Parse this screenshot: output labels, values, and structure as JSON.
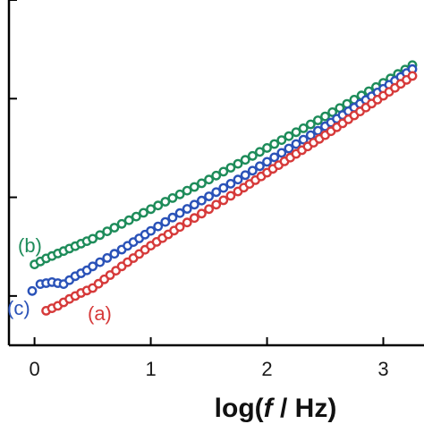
{
  "chart_data": {
    "type": "scatter",
    "xlabel_prefix": "log(",
    "xlabel_italic": "f",
    "xlabel_suffix": " / Hz)",
    "ylabel": "",
    "xlim": [
      -0.22,
      3.35
    ],
    "ylim": [
      0.0,
      3.5
    ],
    "x_ticks": [
      0,
      1,
      2,
      3
    ],
    "x_tick_labels": [
      "0",
      "1",
      "2",
      "3"
    ],
    "y_ticks": [
      0.5,
      1.5,
      2.5,
      3.5
    ],
    "grid": false,
    "legend": "none",
    "series": [
      {
        "name": "(b)",
        "color": "#1e8c5a",
        "x": [
          0.0,
          0.1,
          0.2,
          0.3,
          0.4,
          0.5,
          0.75,
          1.0,
          1.25,
          1.5,
          1.75,
          2.0,
          2.25,
          2.5,
          2.75,
          3.0,
          3.25
        ],
        "y": [
          0.82,
          0.88,
          0.93,
          0.98,
          1.03,
          1.08,
          1.23,
          1.38,
          1.53,
          1.68,
          1.84,
          2.0,
          2.16,
          2.32,
          2.49,
          2.66,
          2.84
        ]
      },
      {
        "name": "(c)",
        "color": "#2a52b8",
        "x": [
          -0.02,
          0.05,
          0.15,
          0.25,
          0.35,
          0.45,
          0.5,
          0.75,
          1.0,
          1.25,
          1.5,
          1.75,
          2.0,
          2.25,
          2.5,
          2.75,
          3.0,
          3.25
        ],
        "y": [
          0.55,
          0.62,
          0.64,
          0.62,
          0.7,
          0.76,
          0.8,
          0.97,
          1.16,
          1.34,
          1.51,
          1.68,
          1.86,
          2.04,
          2.22,
          2.41,
          2.6,
          2.8
        ]
      },
      {
        "name": "(a)",
        "color": "#d63a3a",
        "x": [
          0.1,
          0.2,
          0.3,
          0.4,
          0.5,
          0.75,
          1.0,
          1.25,
          1.5,
          1.75,
          2.0,
          2.25,
          2.5,
          2.75,
          3.0,
          3.25
        ],
        "y": [
          0.35,
          0.4,
          0.47,
          0.53,
          0.58,
          0.8,
          1.01,
          1.2,
          1.38,
          1.56,
          1.75,
          1.94,
          2.13,
          2.33,
          2.53,
          2.73
        ]
      }
    ]
  }
}
